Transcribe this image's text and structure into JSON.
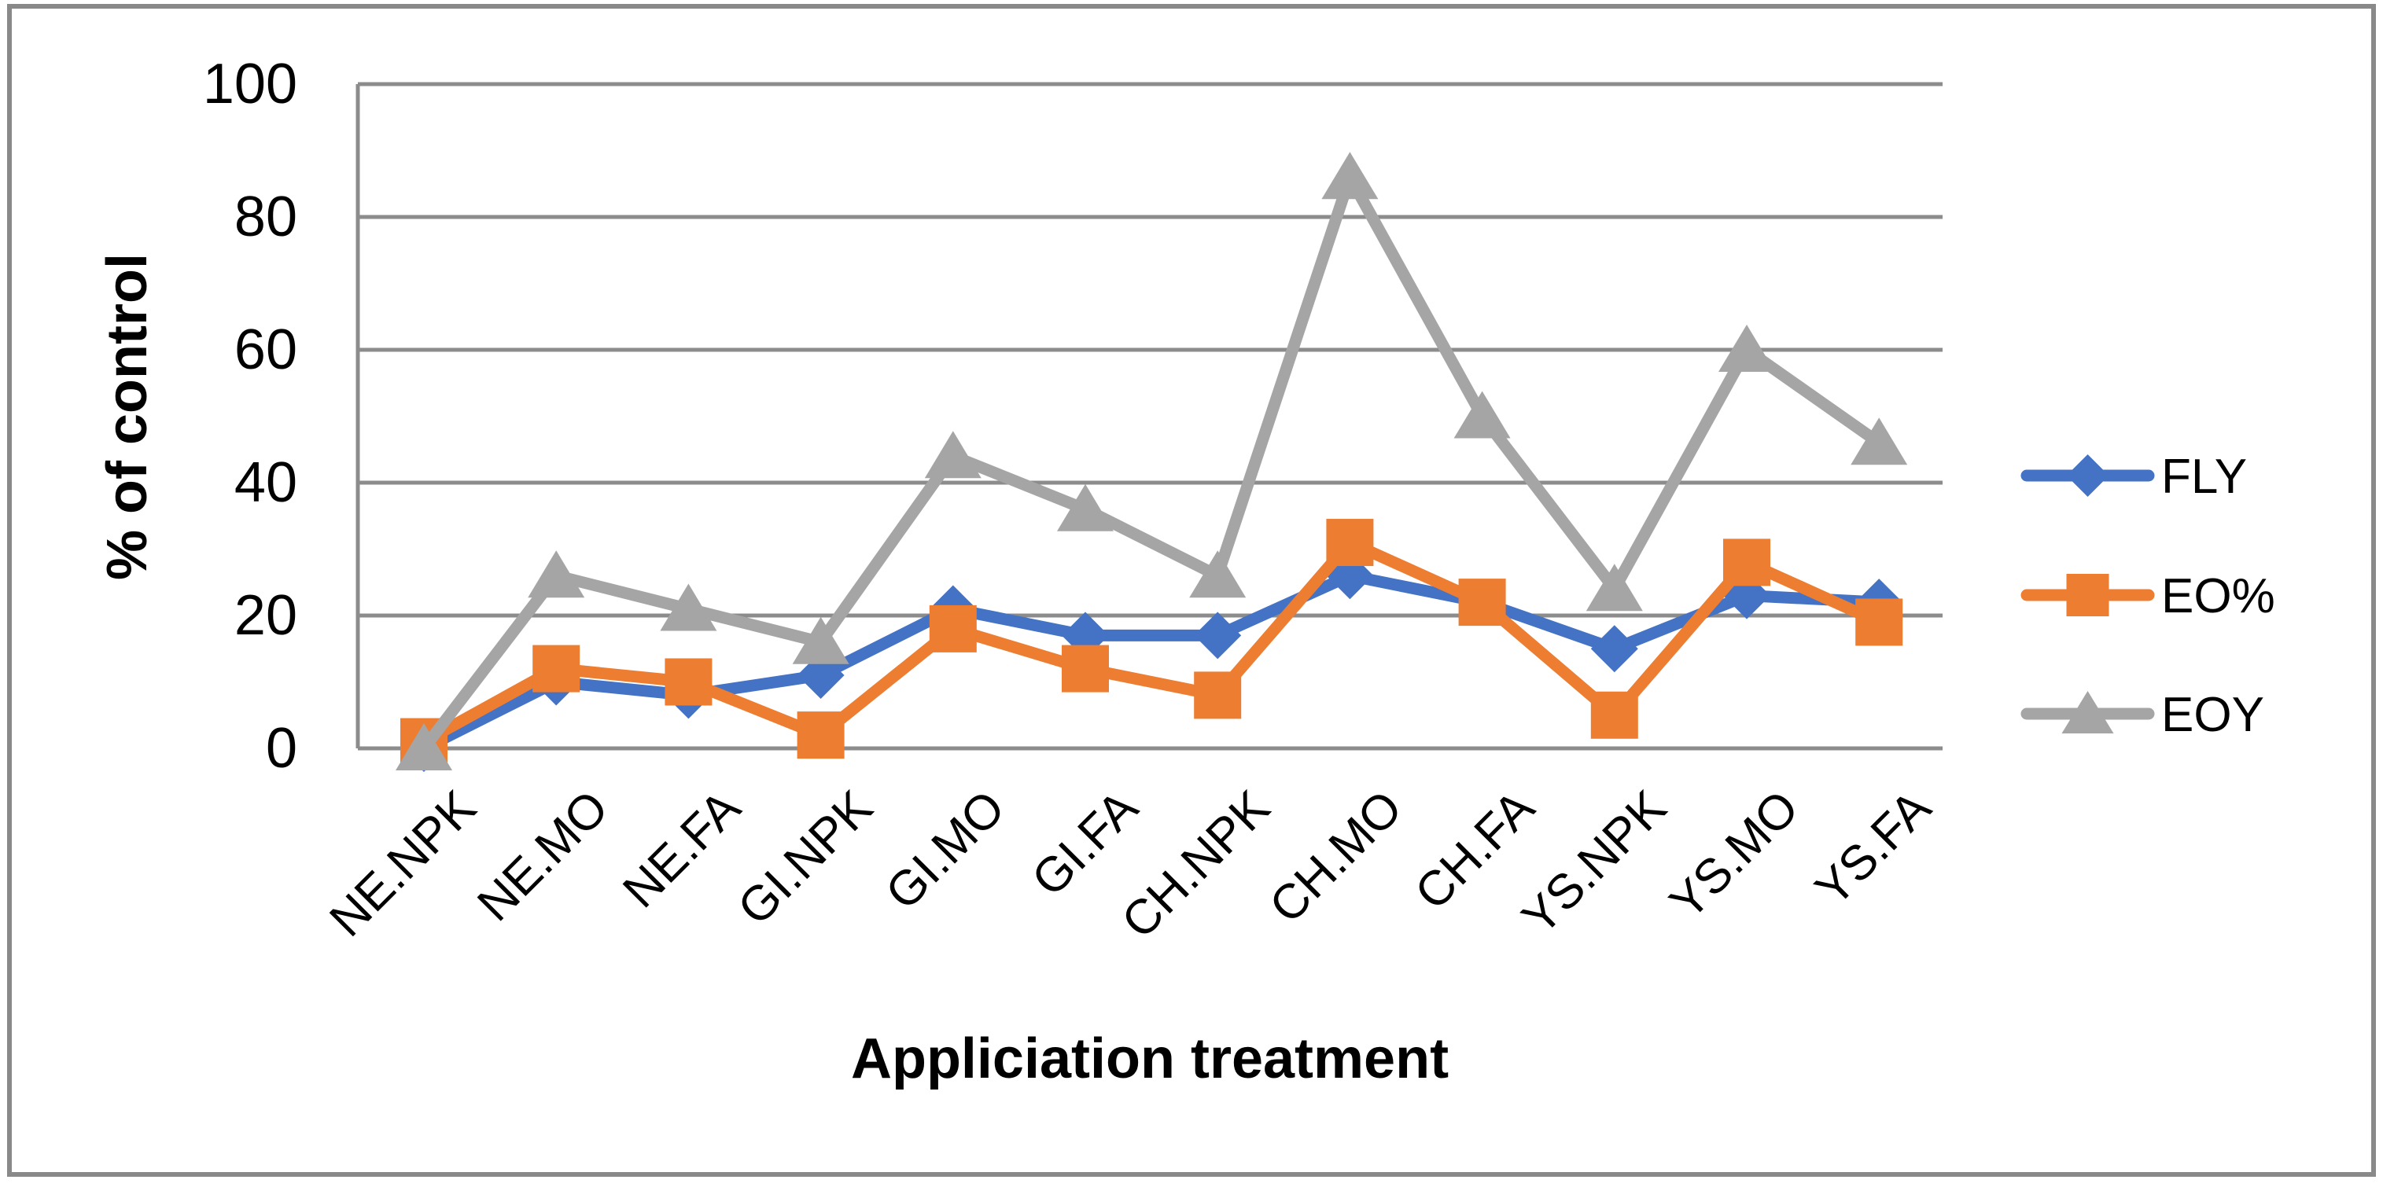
{
  "chart_data": {
    "type": "line",
    "title": "",
    "xlabel": "Appliciation treatment",
    "ylabel": "% of control",
    "categories": [
      "NE.NPK",
      "NE.MO",
      "NE.FA",
      "GI.NPK",
      "GI.MO",
      "GI.FA",
      "CH.NPK",
      "CH.MO",
      "CH.FA",
      "YS.NPK",
      "YS.MO",
      "YS.FA"
    ],
    "series": [
      {
        "name": "FLY",
        "marker": "diamond",
        "color": "#4472C4",
        "values": [
          0,
          10,
          8,
          11,
          21,
          17,
          17,
          26,
          22,
          15,
          23,
          22
        ]
      },
      {
        "name": "EO%",
        "marker": "square",
        "color": "#ED7D31",
        "values": [
          1,
          12,
          10,
          2,
          18,
          12,
          8,
          31,
          22,
          5,
          28,
          19
        ]
      },
      {
        "name": "EOY",
        "marker": "triangle",
        "color": "#A5A5A5",
        "values": [
          0,
          26,
          21,
          16,
          44,
          36,
          26,
          86,
          50,
          24,
          60,
          46
        ]
      }
    ],
    "ylim": [
      0,
      100
    ],
    "yticks": [
      0,
      20,
      40,
      60,
      80,
      100
    ],
    "grid": true,
    "legend_position": "right",
    "gridline_color": "#8C8C8C",
    "axis_line_color": "#8C8C8C",
    "frame_color": "#898989",
    "text_color": "#000000",
    "background_color": "#FFFFFF"
  }
}
